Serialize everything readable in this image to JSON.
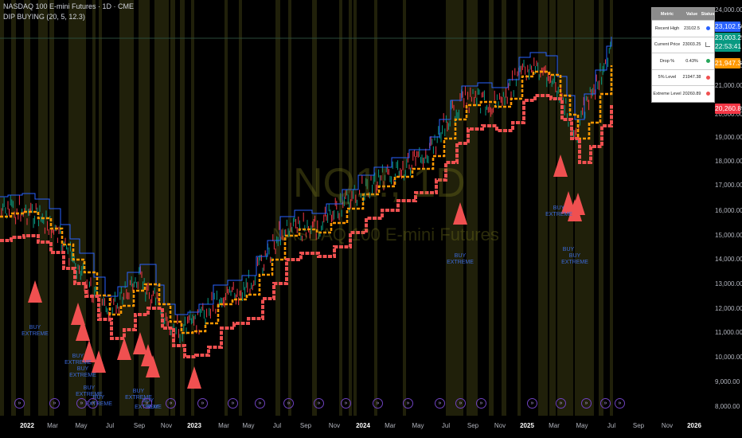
{
  "header": {
    "title": "NASDAQ 100 E-mini Futures · 1D · CME",
    "indicator": "DIP BUYING (20, 5, 12.3)"
  },
  "watermark": {
    "symbol": "NQ1!, 1D",
    "name": "NASDAQ 100 E-mini Futures"
  },
  "metrics_table": {
    "headers": [
      "Metric",
      "Value",
      "Status"
    ],
    "rows": [
      {
        "metric": "Recent High",
        "value": "23102.5",
        "status": "blue-dot-icon",
        "status_color": "#2962ff"
      },
      {
        "metric": "Current Price",
        "value": "23003.25",
        "status": "chart-icon",
        "status_color": "#7a7a7a"
      },
      {
        "metric": "Drop %",
        "value": "0.43%",
        "status": "green-dot-icon",
        "status_color": "#26a65b"
      },
      {
        "metric": "5% Level",
        "value": "21947.38",
        "status": "red-dot-icon",
        "status_color": "#f05050"
      },
      {
        "metric": "Extreme Level",
        "value": "20260.89",
        "status": "red-dot-icon",
        "status_color": "#f05050"
      }
    ]
  },
  "y_axis": [
    "24,000.00",
    "22,000.00",
    "21,000.00",
    "20,000.00",
    "19,000.00",
    "18,000.00",
    "17,000.00",
    "16,000.00",
    "15,000.00",
    "14,000.00",
    "13,000.00",
    "12,000.00",
    "11,000.00",
    "10,000.00",
    "9,000.00",
    "8,000.00"
  ],
  "price_tags": [
    {
      "text": "23,102.50",
      "color": "#2962ff"
    },
    {
      "text": "23,003.25",
      "color": "#089981"
    },
    {
      "text": "22:53:41",
      "color": "#089981"
    },
    {
      "text": "21,947.38",
      "color": "#ff9800"
    },
    {
      "text": "20,260.89",
      "color": "#f23645"
    }
  ],
  "x_axis": [
    {
      "text": "2022",
      "bold": true
    },
    {
      "text": "Mar",
      "bold": false
    },
    {
      "text": "May",
      "bold": false
    },
    {
      "text": "Jul",
      "bold": false
    },
    {
      "text": "Sep",
      "bold": false
    },
    {
      "text": "Nov",
      "bold": false
    },
    {
      "text": "2023",
      "bold": true
    },
    {
      "text": "Mar",
      "bold": false
    },
    {
      "text": "May",
      "bold": false
    },
    {
      "text": "Jul",
      "bold": false
    },
    {
      "text": "Sep",
      "bold": false
    },
    {
      "text": "Nov",
      "bold": false
    },
    {
      "text": "2024",
      "bold": true
    },
    {
      "text": "Mar",
      "bold": false
    },
    {
      "text": "May",
      "bold": false
    },
    {
      "text": "Jul",
      "bold": false
    },
    {
      "text": "Sep",
      "bold": false
    },
    {
      "text": "Nov",
      "bold": false
    },
    {
      "text": "2025",
      "bold": true
    },
    {
      "text": "Mar",
      "bold": false
    },
    {
      "text": "May",
      "bold": false
    },
    {
      "text": "Jul",
      "bold": false
    },
    {
      "text": "Sep",
      "bold": false
    },
    {
      "text": "Nov",
      "bold": false
    },
    {
      "text": "2026",
      "bold": true
    }
  ],
  "labels": {
    "buy_extreme": "BUY\nEXTREME",
    "buy": "BUY"
  },
  "colors": {
    "high_line": "#2962ff",
    "five_pct": "#ff9800",
    "extreme": "#f05050",
    "highlight_band": "#3b3a12",
    "up_candle": "#089981",
    "down_candle": "#f23645"
  }
}
